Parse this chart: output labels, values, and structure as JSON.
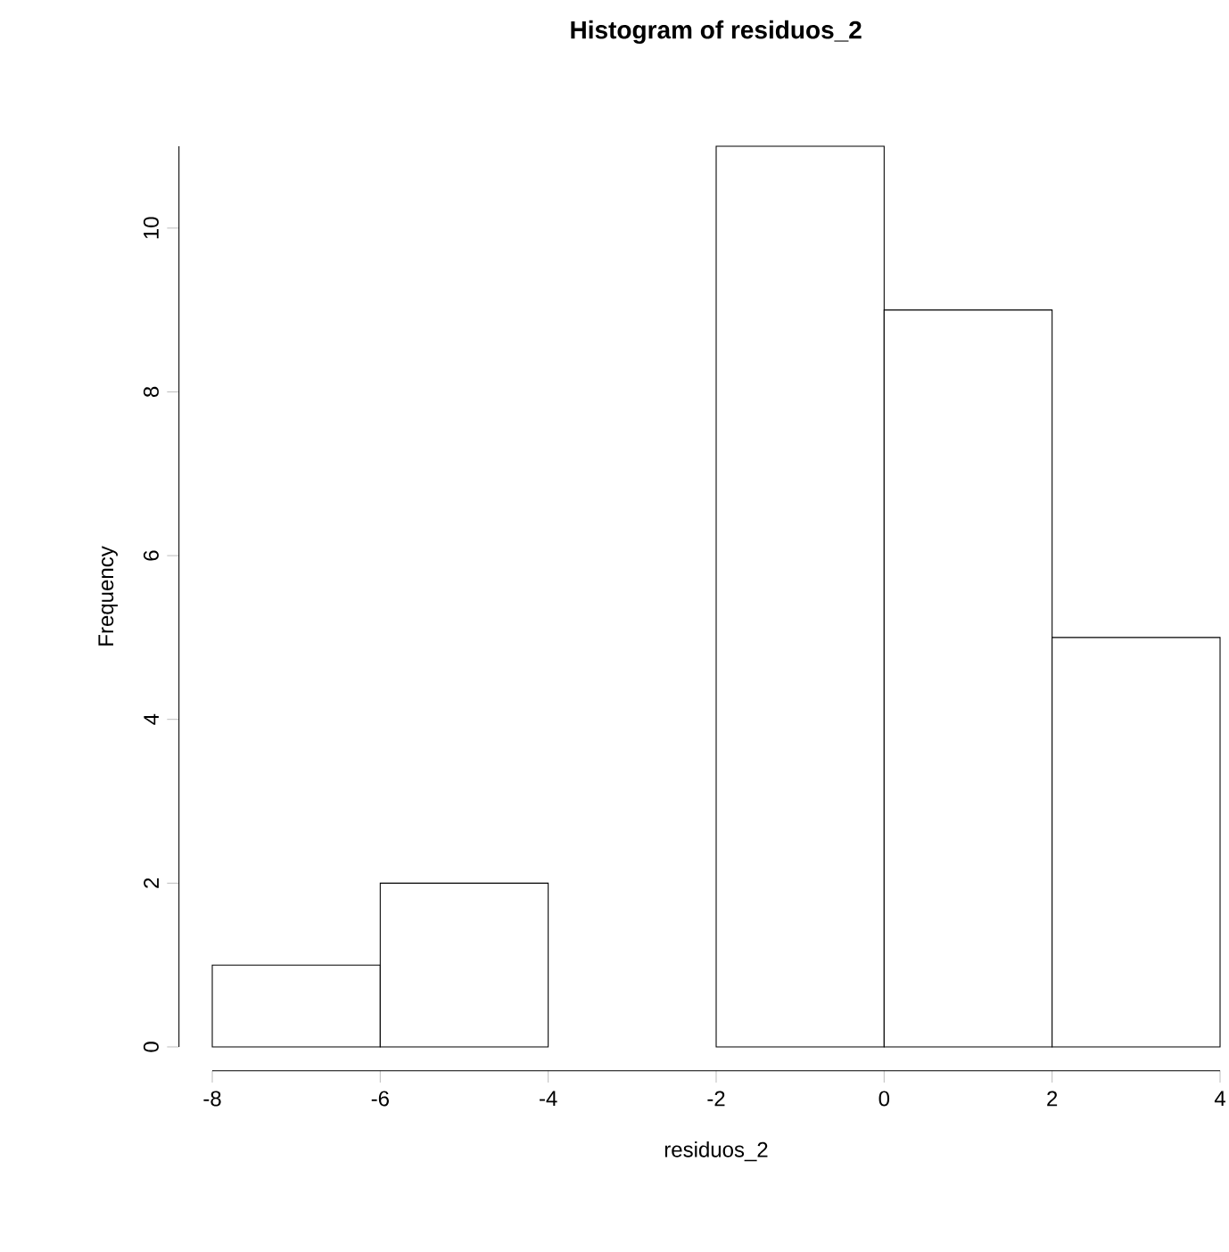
{
  "chart_data": {
    "type": "histogram",
    "title": "Histogram of residuos_2",
    "xlabel": "residuos_2",
    "ylabel": "Frequency",
    "bins": [
      -8,
      -6,
      -4,
      -2,
      0,
      2,
      4
    ],
    "values": [
      1,
      2,
      0,
      11,
      9,
      5
    ],
    "color": "#ffffff",
    "xlim": [
      -8,
      4
    ],
    "ylim": [
      0,
      11
    ],
    "xticks": [
      -8,
      -6,
      -4,
      -2,
      0,
      2,
      4
    ],
    "yticks": [
      0,
      2,
      4,
      6,
      8,
      10
    ],
    "grid": false
  }
}
